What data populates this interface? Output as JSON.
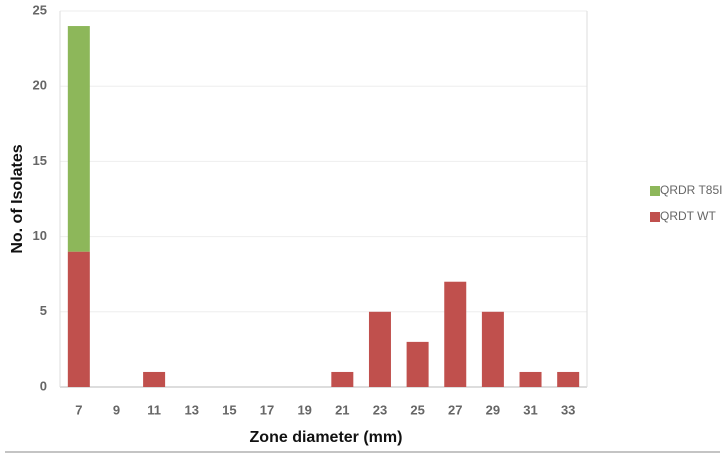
{
  "chart_data": {
    "type": "bar",
    "stacked": true,
    "x_label": "Zone diameter (mm)",
    "y_label": "No. of Isolates",
    "categories": [
      7,
      9,
      11,
      13,
      15,
      17,
      19,
      21,
      23,
      25,
      27,
      29,
      31,
      33
    ],
    "series": [
      {
        "name": "QRDT WT",
        "color": "#c0504d",
        "values": [
          9,
          0,
          1,
          0,
          0,
          0,
          0,
          1,
          5,
          3,
          7,
          5,
          1,
          1
        ]
      },
      {
        "name": "QRDR T85I",
        "color": "#8db75a",
        "values": [
          15,
          0,
          0,
          0,
          0,
          0,
          0,
          0,
          0,
          0,
          0,
          0,
          0,
          0
        ]
      }
    ],
    "ylim": [
      0,
      25
    ],
    "yticks": [
      0,
      5,
      10,
      15,
      20,
      25
    ],
    "grid": true
  }
}
